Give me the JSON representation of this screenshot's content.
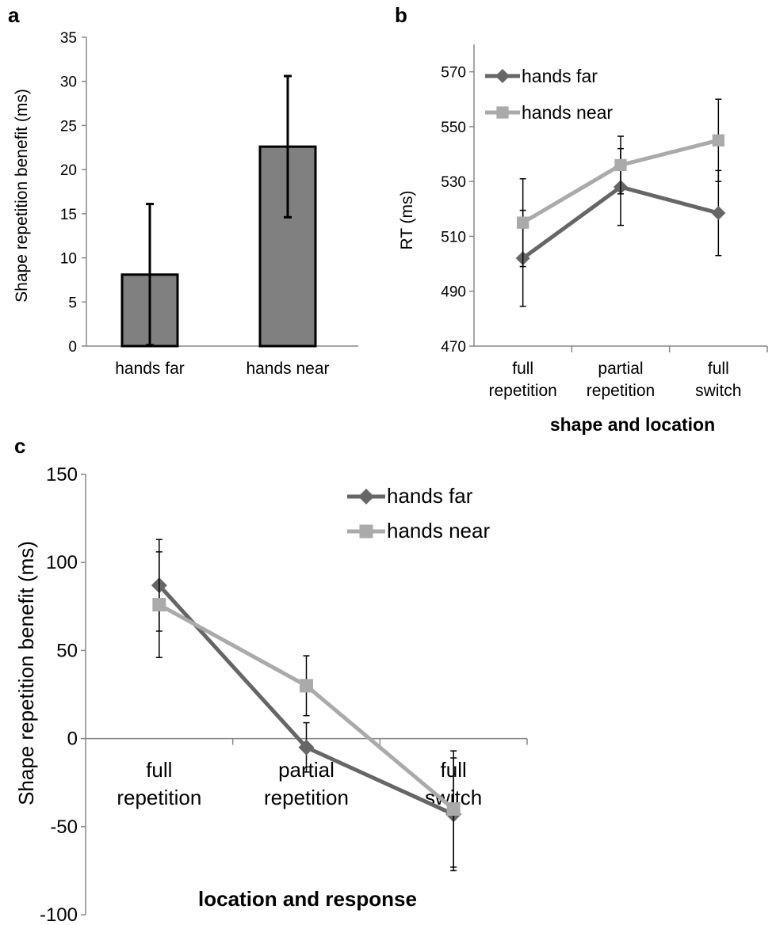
{
  "chart_data": [
    {
      "panel": "a",
      "type": "bar",
      "categories": [
        "hands far",
        "hands near"
      ],
      "values": [
        8.1,
        22.6
      ],
      "errors": [
        8.0,
        8.0
      ],
      "ylabel": "Shape repetition benefit (ms)",
      "xlabel": "",
      "ylim": [
        0,
        35
      ],
      "yticks": [
        0,
        5,
        10,
        15,
        20,
        25,
        30,
        35
      ],
      "bar_color": "#808080",
      "grid": false
    },
    {
      "panel": "b",
      "type": "line",
      "categories": [
        "full repetition",
        "partial repetition",
        "full switch"
      ],
      "category_lines": [
        [
          "full",
          "repetition"
        ],
        [
          "partial",
          "repetition"
        ],
        [
          "full",
          "switch"
        ]
      ],
      "series": [
        {
          "name": "hands far",
          "values": [
            502,
            528,
            518.5
          ],
          "errors": [
            17.5,
            14,
            15.5
          ],
          "color": "#666666",
          "marker": "diamond"
        },
        {
          "name": "hands near",
          "values": [
            515,
            536,
            545
          ],
          "errors": [
            16,
            10.5,
            15
          ],
          "color": "#aaaaaa",
          "marker": "square"
        }
      ],
      "ylabel": "RT (ms)",
      "xlabel": "shape and location",
      "ylim": [
        470,
        580
      ],
      "yticks": [
        470,
        490,
        510,
        530,
        550,
        570
      ],
      "legend_position": "top-left",
      "grid": false
    },
    {
      "panel": "c",
      "type": "line",
      "categories": [
        "full repetition",
        "partial repetition",
        "full switch"
      ],
      "category_lines": [
        [
          "full",
          "repetition"
        ],
        [
          "partial",
          "repetition"
        ],
        [
          "full",
          "switch"
        ]
      ],
      "series": [
        {
          "name": "hands far",
          "values": [
            87,
            -5,
            -43
          ],
          "errors": [
            26,
            14,
            32
          ],
          "color": "#666666",
          "marker": "diamond"
        },
        {
          "name": "hands near",
          "values": [
            76,
            30,
            -40
          ],
          "errors": [
            30,
            17,
            33
          ],
          "color": "#aaaaaa",
          "marker": "square"
        }
      ],
      "ylabel": "Shape repetition benefit (ms)",
      "xlabel": "location and response",
      "ylim": [
        -100,
        150
      ],
      "yticks": [
        -100,
        -50,
        0,
        50,
        100,
        150
      ],
      "legend_position": "top-right",
      "grid": false
    }
  ]
}
